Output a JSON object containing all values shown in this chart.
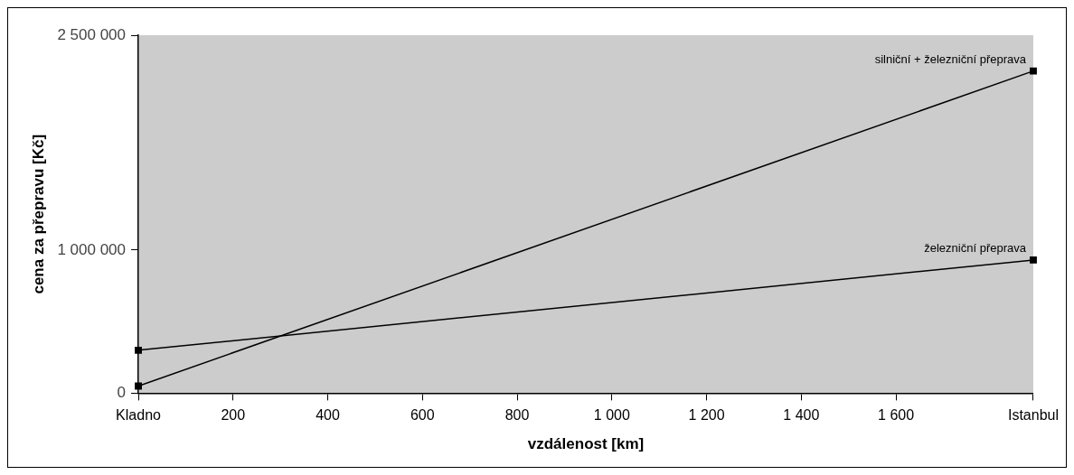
{
  "chart_data": {
    "type": "line",
    "xlabel": "vzdálenost [km]",
    "ylabel": "cena za přepravu [Kč]",
    "xlim": [
      0,
      1890
    ],
    "xticks": [
      {
        "value": 0,
        "label": "Kladno"
      },
      200,
      400,
      600,
      800,
      {
        "value": 1000,
        "label": "1 000"
      },
      {
        "value": 1200,
        "label": "1 200"
      },
      {
        "value": 1400,
        "label": "1 400"
      },
      {
        "value": 1600,
        "label": "1 600"
      },
      {
        "value": 1890,
        "label": "Istanbul"
      }
    ],
    "ylim": [
      0,
      2500000
    ],
    "yticks": [
      0,
      {
        "value": 1000000,
        "label": "1 000 000"
      },
      {
        "value": 2500000,
        "label": "2 500 000"
      }
    ],
    "x": [
      0,
      1890
    ],
    "series": [
      {
        "name": "silniční + železniční přeprava",
        "color": "#000000",
        "values": [
          50000,
          2250000
        ]
      },
      {
        "name": "železniční přeprava",
        "color": "#000000",
        "values": [
          300000,
          930000
        ]
      }
    ],
    "marker": "square",
    "line_style": "solid",
    "grid": false,
    "legend": false
  }
}
